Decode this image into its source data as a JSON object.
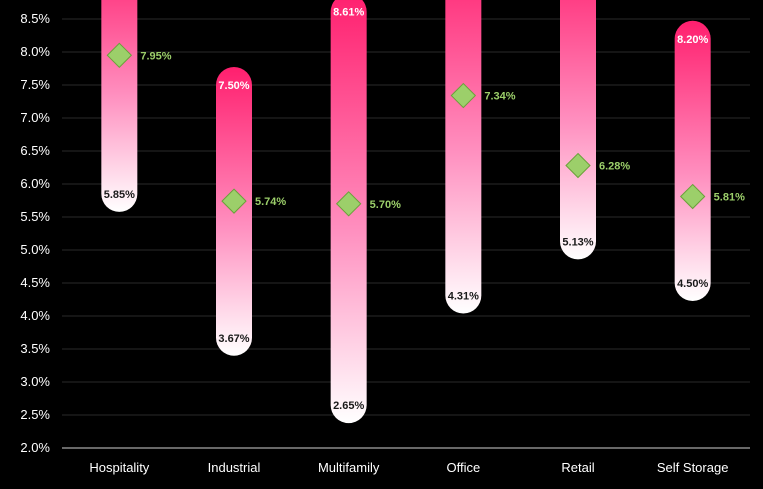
{
  "chart_data": {
    "type": "range-bar",
    "title": "",
    "xlabel": "",
    "ylabel": "",
    "ylim": [
      2.0,
      8.5
    ],
    "yticks": [
      "2.0%",
      "2.5%",
      "3.0%",
      "3.5%",
      "4.0%",
      "4.5%",
      "5.0%",
      "5.5%",
      "6.0%",
      "6.5%",
      "7.0%",
      "7.5%",
      "8.0%",
      "8.5%"
    ],
    "categories": [
      "Hospitality",
      "Industrial",
      "Multifamily",
      "Office",
      "Retail",
      "Self Storage"
    ],
    "series": [
      {
        "name": "High",
        "values": [
          null,
          7.5,
          8.61,
          null,
          null,
          8.2
        ],
        "labels": [
          "",
          "7.50%",
          "8.61%",
          "",
          "",
          "8.20%"
        ]
      },
      {
        "name": "Low",
        "values": [
          5.85,
          3.67,
          2.65,
          4.31,
          5.13,
          4.5
        ],
        "labels": [
          "5.85%",
          "3.67%",
          "2.65%",
          "4.31%",
          "5.13%",
          "4.50%"
        ]
      },
      {
        "name": "Average",
        "values": [
          7.95,
          5.74,
          5.7,
          7.34,
          6.28,
          5.81
        ],
        "labels": [
          "7.95%",
          "5.74%",
          "5.70%",
          "7.34%",
          "6.28%",
          "5.81%"
        ]
      }
    ],
    "colors": {
      "bar_top": "#ff1f6e",
      "bar_mid": "#ff8fbf",
      "bar_bottom": "#ffffff",
      "marker": "#9ccf6a",
      "marker_stroke": "#6aa03a",
      "grid": "#2a2a2a"
    }
  }
}
